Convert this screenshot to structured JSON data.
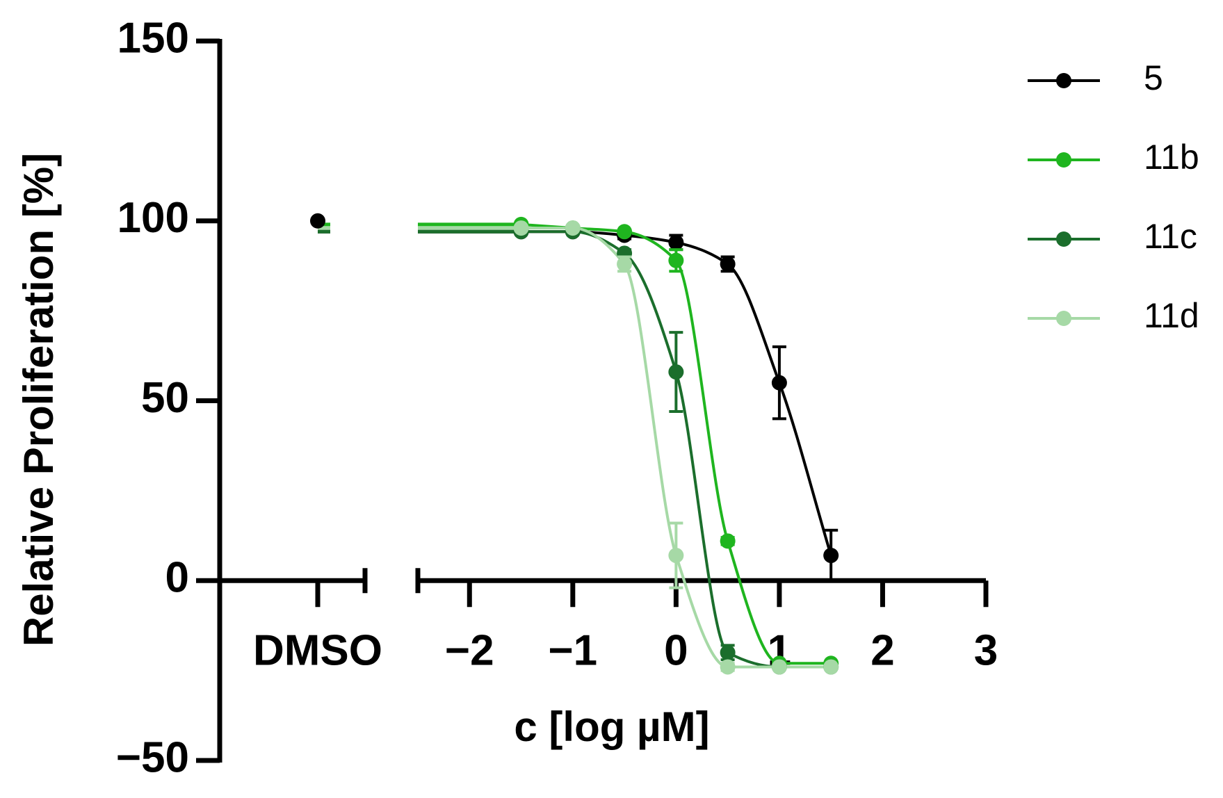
{
  "chart_data": {
    "type": "line",
    "xlabel": "c [log µM]",
    "ylabel": "Relative  Proliferation [%]",
    "control_label": "DMSO",
    "xlim": [
      -2.5,
      3
    ],
    "xticks": [
      {
        "value": -2,
        "label": "−2"
      },
      {
        "value": -1,
        "label": "−1"
      },
      0,
      1,
      2,
      3
    ],
    "ylim": [
      -50,
      150
    ],
    "yticks": [
      {
        "value": -50,
        "label": "−50"
      },
      0,
      50,
      100,
      150
    ],
    "legend": "upper right",
    "x": [
      -1.5,
      -1,
      -0.5,
      0,
      0.5,
      1,
      1.5
    ],
    "series": [
      {
        "name": "5",
        "color": "#000000",
        "control_value": 100,
        "values": [
          97,
          97,
          96,
          94,
          88,
          55,
          7
        ],
        "errors": [
          0,
          0,
          1,
          2,
          2,
          10,
          7
        ]
      },
      {
        "name": "11b",
        "color": "#1fb51f",
        "values": [
          99,
          98,
          97,
          89,
          11,
          -23,
          -23
        ],
        "errors": [
          0,
          0,
          0,
          3,
          1,
          0,
          0
        ]
      },
      {
        "name": "11c",
        "color": "#1b6e2c",
        "values": [
          97,
          97,
          91,
          58,
          -20,
          -24,
          -24
        ],
        "errors": [
          0,
          0,
          1,
          11,
          2,
          0,
          0
        ]
      },
      {
        "name": "11d",
        "color": "#a6d9a6",
        "values": [
          98,
          98,
          88,
          7,
          -24,
          -24,
          -24
        ],
        "errors": [
          0,
          0,
          2,
          9,
          1,
          0,
          0
        ]
      }
    ]
  }
}
